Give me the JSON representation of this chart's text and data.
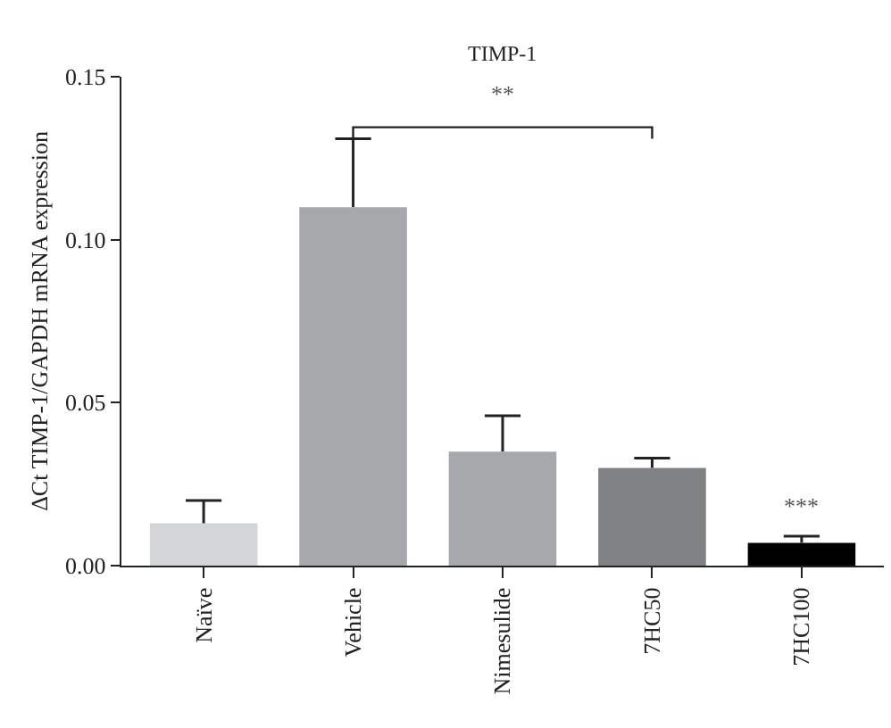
{
  "chart_data": {
    "type": "bar",
    "title": "TIMP-1",
    "ylabel": "ΔCt TIMP-1/GAPDH mRNA expression",
    "categories": [
      "Naïve",
      "Vehicle",
      "Nimesulide",
      "7HC50",
      "7HC100"
    ],
    "values": [
      0.013,
      0.11,
      0.035,
      0.03,
      0.007
    ],
    "colors": [
      "#d4d5d6",
      "#a7a8ab",
      "#a7a8ab",
      "#808184",
      "#000000"
    ],
    "errors": [
      [
        0.013,
        0.02
      ],
      [
        0.11,
        0.131
      ],
      [
        0.035,
        0.046
      ],
      [
        0.03,
        0.033
      ],
      [
        0.007,
        0.009
      ]
    ],
    "ylim": [
      0,
      0.15
    ],
    "yticks": [
      {
        "value": 0,
        "label": "0.00"
      },
      {
        "value": 0.05,
        "label": "0.05"
      },
      {
        "value": 0.1,
        "label": "0.10"
      },
      {
        "value": 0.15,
        "label": "0.15"
      }
    ],
    "grid": false,
    "annotations": [
      "**",
      "***"
    ]
  }
}
